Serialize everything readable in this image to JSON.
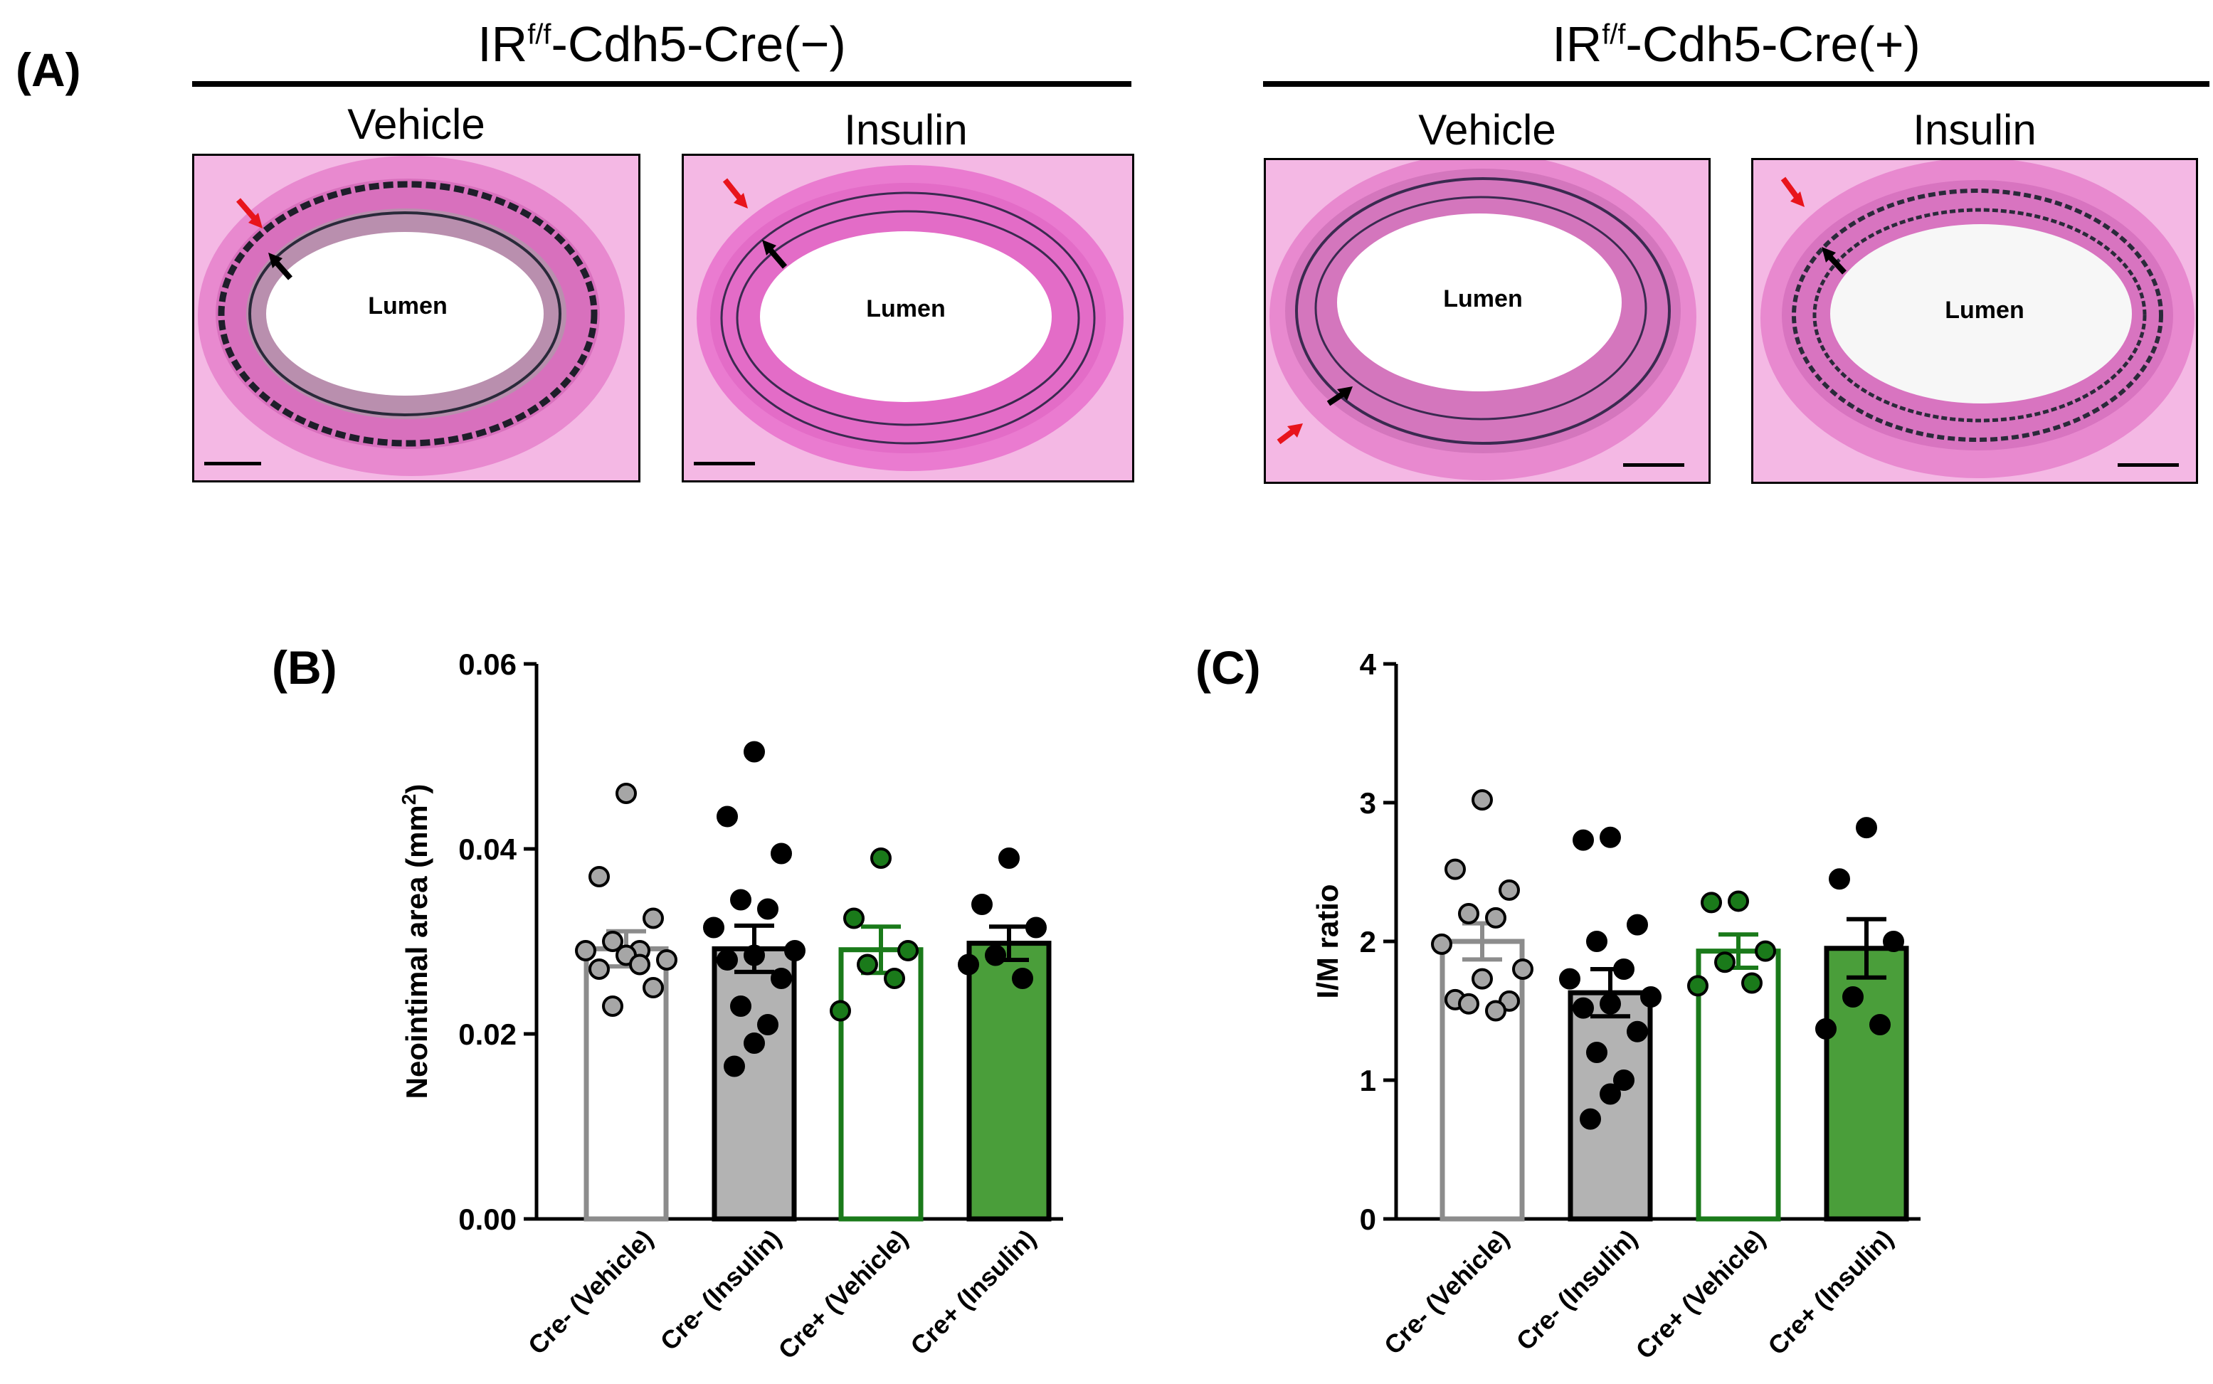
{
  "panel_a": {
    "label": "(A)",
    "groups": [
      {
        "title_main": "IR",
        "title_sup": "f/f",
        "title_rest": "-Cdh5-Cre(−)",
        "conditions": [
          "Vehicle",
          "Insulin"
        ]
      },
      {
        "title_main": "IR",
        "title_sup": "f/f",
        "title_rest": "-Cdh5-Cre(+)",
        "conditions": [
          "Vehicle",
          "Insulin"
        ]
      }
    ],
    "lumen_label": "Lumen",
    "colors": {
      "tissue": "#e06cc0",
      "tissue_light": "#f4b8e4",
      "elastic": "#2a2a3a",
      "red_arrow": "#e8141c",
      "black_arrow": "#000000"
    }
  },
  "chart_data": [
    {
      "panel": "(B)",
      "type": "bar",
      "ylabel": "Neointimal area (mm",
      "ylabel_sup": "2",
      "ylabel_close": ")",
      "ylim": [
        0,
        0.06
      ],
      "yticks": [
        0,
        0.02,
        0.04,
        0.06
      ],
      "ytick_labels": [
        "0.00",
        "0.02",
        "0.04",
        "0.06"
      ],
      "categories": [
        "Cre- (Vehicle)",
        "Cre- (Insulin)",
        "Cre+ (Vehicle)",
        "Cre+ (Insulin)"
      ],
      "values": [
        0.0292,
        0.0292,
        0.0291,
        0.0298
      ],
      "errors": [
        0.0019,
        0.0025,
        0.0025,
        0.0018
      ],
      "fills": [
        "#ffffff",
        "#b3b3b3",
        "#ffffff",
        "#4a9e3a"
      ],
      "strokes": [
        "#8c8c8c",
        "#000000",
        "#1a7a1a",
        "#000000"
      ],
      "point_fills": [
        "#a6a6a6",
        "#000000",
        "#1a7a1a",
        "#000000"
      ],
      "points": [
        [
          0.046,
          0.037,
          0.0325,
          0.03,
          0.029,
          0.029,
          0.028,
          0.0285,
          0.027,
          0.025,
          0.023,
          0.0275
        ],
        [
          0.0505,
          0.0435,
          0.0395,
          0.0345,
          0.0335,
          0.0315,
          0.029,
          0.0285,
          0.028,
          0.026,
          0.023,
          0.021,
          0.019,
          0.0165
        ],
        [
          0.039,
          0.0325,
          0.029,
          0.0275,
          0.026,
          0.0225
        ],
        [
          0.039,
          0.034,
          0.0315,
          0.0285,
          0.026,
          0.0275
        ]
      ]
    },
    {
      "panel": "(C)",
      "type": "bar",
      "ylabel": "I/M ratio",
      "ylim": [
        0,
        4
      ],
      "yticks": [
        0,
        1,
        2,
        3,
        4
      ],
      "ytick_labels": [
        "0",
        "1",
        "2",
        "3",
        "4"
      ],
      "categories": [
        "Cre- (Vehicle)",
        "Cre- (Insulin)",
        "Cre+ (Vehicle)",
        "Cre+ (Insulin)"
      ],
      "values": [
        2.0,
        1.63,
        1.93,
        1.95
      ],
      "errors": [
        0.13,
        0.17,
        0.12,
        0.21
      ],
      "fills": [
        "#ffffff",
        "#b3b3b3",
        "#ffffff",
        "#4a9e3a"
      ],
      "strokes": [
        "#8c8c8c",
        "#000000",
        "#1a7a1a",
        "#000000"
      ],
      "point_fills": [
        "#a6a6a6",
        "#000000",
        "#1a7a1a",
        "#000000"
      ],
      "points": [
        [
          3.02,
          2.52,
          2.37,
          2.2,
          2.17,
          1.98,
          1.8,
          1.73,
          1.58,
          1.57,
          1.55,
          1.5
        ],
        [
          2.75,
          2.73,
          2.12,
          2.0,
          1.8,
          1.73,
          1.6,
          1.55,
          1.52,
          1.35,
          1.2,
          1.0,
          0.9,
          0.72
        ],
        [
          2.29,
          2.28,
          1.93,
          1.85,
          1.7,
          1.68
        ],
        [
          2.82,
          2.45,
          2.0,
          1.6,
          1.4,
          1.37
        ]
      ]
    }
  ]
}
